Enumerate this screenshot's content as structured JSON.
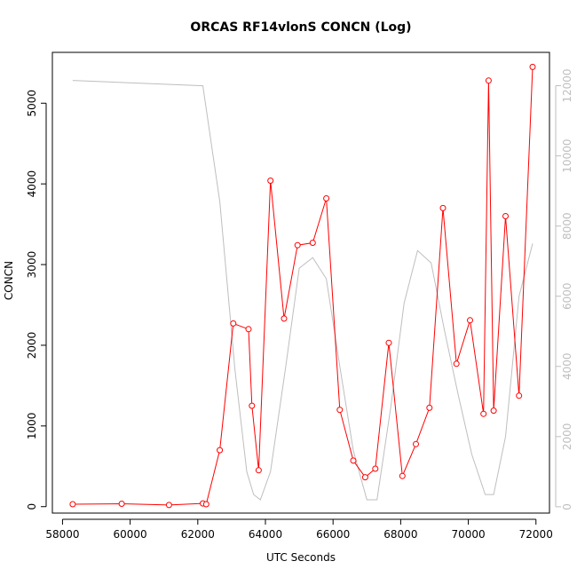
{
  "chart_data": {
    "type": "line",
    "title": "ORCAS RF14vlonS CONCN (Log)",
    "xlabel": "UTC Seconds",
    "ylabel": "CONCN",
    "xlim": [
      57700,
      72400
    ],
    "ylim": [
      -80,
      5630
    ],
    "y2lim": [
      -180,
      12950
    ],
    "x_ticks": [
      58000,
      60000,
      62000,
      64000,
      66000,
      68000,
      70000,
      72000
    ],
    "y_ticks": [
      0,
      1000,
      2000,
      3000,
      4000,
      5000
    ],
    "y2_ticks": [
      0,
      2000,
      4000,
      6000,
      8000,
      10000,
      12000
    ],
    "grid": false,
    "colors": {
      "primary": "#ff0000",
      "secondary": "#bebebe",
      "axis": "#000000"
    },
    "series": [
      {
        "axis": "left",
        "style": "line-points",
        "color": "#ff0000",
        "x": [
          58300,
          59750,
          61150,
          62150,
          62250,
          62650,
          63050,
          63500,
          63600,
          63800,
          64150,
          64550,
          64950,
          65400,
          65800,
          66200,
          66600,
          66950,
          67250,
          67650,
          68050,
          68450,
          68850,
          69250,
          69650,
          70050,
          70450,
          70600,
          70750,
          71100,
          71500,
          71900
        ],
        "y": [
          30,
          35,
          20,
          40,
          30,
          700,
          2270,
          2200,
          1250,
          450,
          4040,
          2330,
          3240,
          3270,
          3820,
          1200,
          570,
          365,
          470,
          2030,
          380,
          775,
          1225,
          3700,
          1770,
          2310,
          1150,
          5280,
          1190,
          3600,
          1375,
          5450
        ]
      },
      {
        "axis": "right",
        "style": "line",
        "color": "#bebebe",
        "x": [
          58300,
          62150,
          62650,
          63100,
          63450,
          63650,
          63850,
          64150,
          64600,
          65000,
          65400,
          65800,
          66200,
          66600,
          67000,
          67300,
          67700,
          68100,
          68500,
          68900,
          69300,
          69700,
          70100,
          70500,
          70750,
          71100,
          71500,
          71900
        ],
        "y": [
          12150,
          12000,
          8700,
          3900,
          1000,
          350,
          200,
          1000,
          4000,
          6800,
          7100,
          6500,
          4000,
          1600,
          200,
          200,
          2800,
          5800,
          7300,
          6950,
          5000,
          3200,
          1500,
          350,
          350,
          2000,
          6000,
          7500
        ]
      }
    ]
  }
}
